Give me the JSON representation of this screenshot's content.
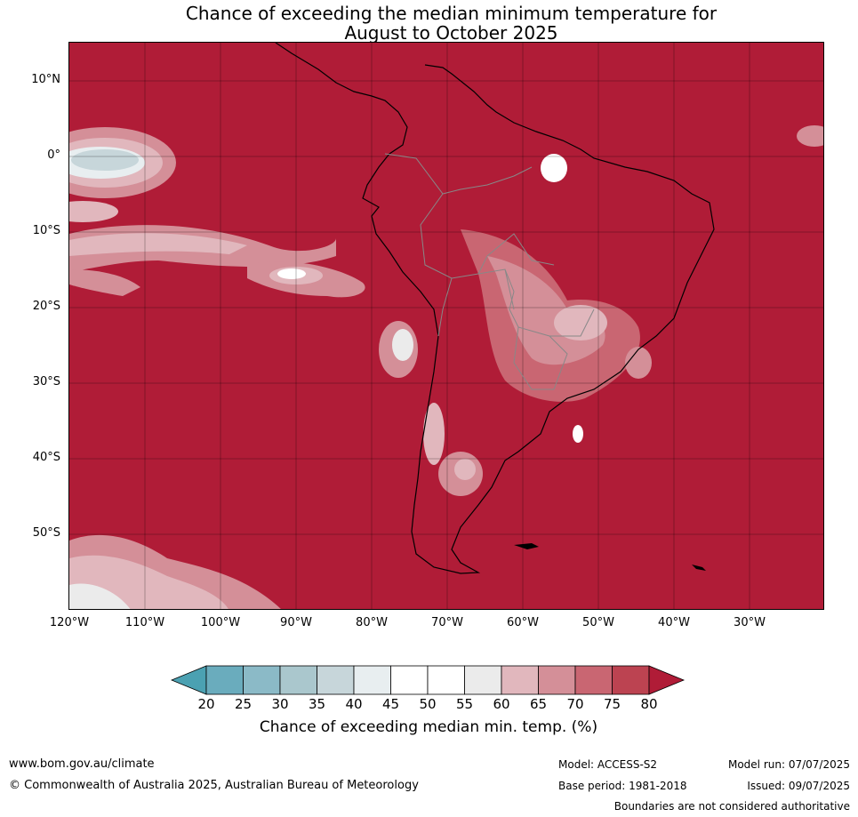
{
  "title": {
    "line1": "Chance of exceeding the median minimum temperature for",
    "line2": "August to October 2025"
  },
  "map": {
    "background_color": "#b01c37",
    "latitude_labels": [
      "10°N",
      "0°",
      "10°S",
      "20°S",
      "30°S",
      "40°S",
      "50°S"
    ],
    "longitude_labels": [
      "120°W",
      "110°W",
      "100°W",
      "90°W",
      "80°W",
      "70°W",
      "60°W",
      "50°W",
      "40°W",
      "30°W"
    ]
  },
  "colorbar": {
    "ticks": [
      "20",
      "25",
      "30",
      "35",
      "40",
      "45",
      "50",
      "55",
      "60",
      "65",
      "70",
      "75",
      "80"
    ],
    "colors": [
      "#6aacbd",
      "#8bbac7",
      "#aac7cd",
      "#c7d6da",
      "#e8eef0",
      "#ffffff",
      "#ffffff",
      "#ebebeb",
      "#e1b7bd",
      "#d48f98",
      "#c96672",
      "#bc4351"
    ],
    "under_color": "#4ba1b2",
    "over_color": "#b01c37",
    "label": "Chance of exceeding median min. temp. (%)"
  },
  "footer": {
    "website": "www.bom.gov.au/climate",
    "copyright": "© Commonwealth of Australia 2025, Australian Bureau of Meteorology",
    "model": "Model: ACCESS-S2",
    "base_period": "Base period: 1981-2018",
    "model_run": "Model run: 07/07/2025",
    "issued": "Issued: 09/07/2025",
    "disclaimer": "Boundaries are not considered authoritative"
  }
}
